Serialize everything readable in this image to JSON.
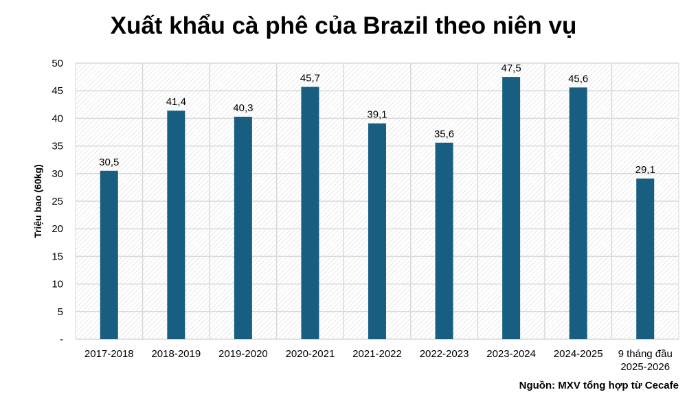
{
  "chart_data": {
    "type": "bar",
    "title": "Xuất khẩu cà phê của Brazil theo niên vụ",
    "xlabel": "",
    "ylabel": "Triệu bao (60kg)",
    "categories": [
      "2017-2018",
      "2018-2019",
      "2019-2020",
      "2020-2021",
      "2021-2022",
      "2022-2023",
      "2023-2024",
      "2024-2025",
      "9 tháng đầu\n2025-2026"
    ],
    "values": [
      30.5,
      41.4,
      40.3,
      45.7,
      39.1,
      35.6,
      47.5,
      45.6,
      29.1
    ],
    "value_labels": [
      "30,5",
      "41,4",
      "40,3",
      "45,7",
      "39,1",
      "35,6",
      "47,5",
      "45,6",
      "29,1"
    ],
    "ylim": [
      0,
      50
    ],
    "yticks": [
      0,
      5,
      10,
      15,
      20,
      25,
      30,
      35,
      40,
      45,
      50
    ],
    "ytick_labels": [
      "-",
      "5",
      "10",
      "15",
      "20",
      "25",
      "30",
      "35",
      "40",
      "45",
      "50"
    ],
    "grid": true,
    "bar_color": "#175e80",
    "source": "Nguồn: MXV tổng hợp từ Cecafe"
  }
}
